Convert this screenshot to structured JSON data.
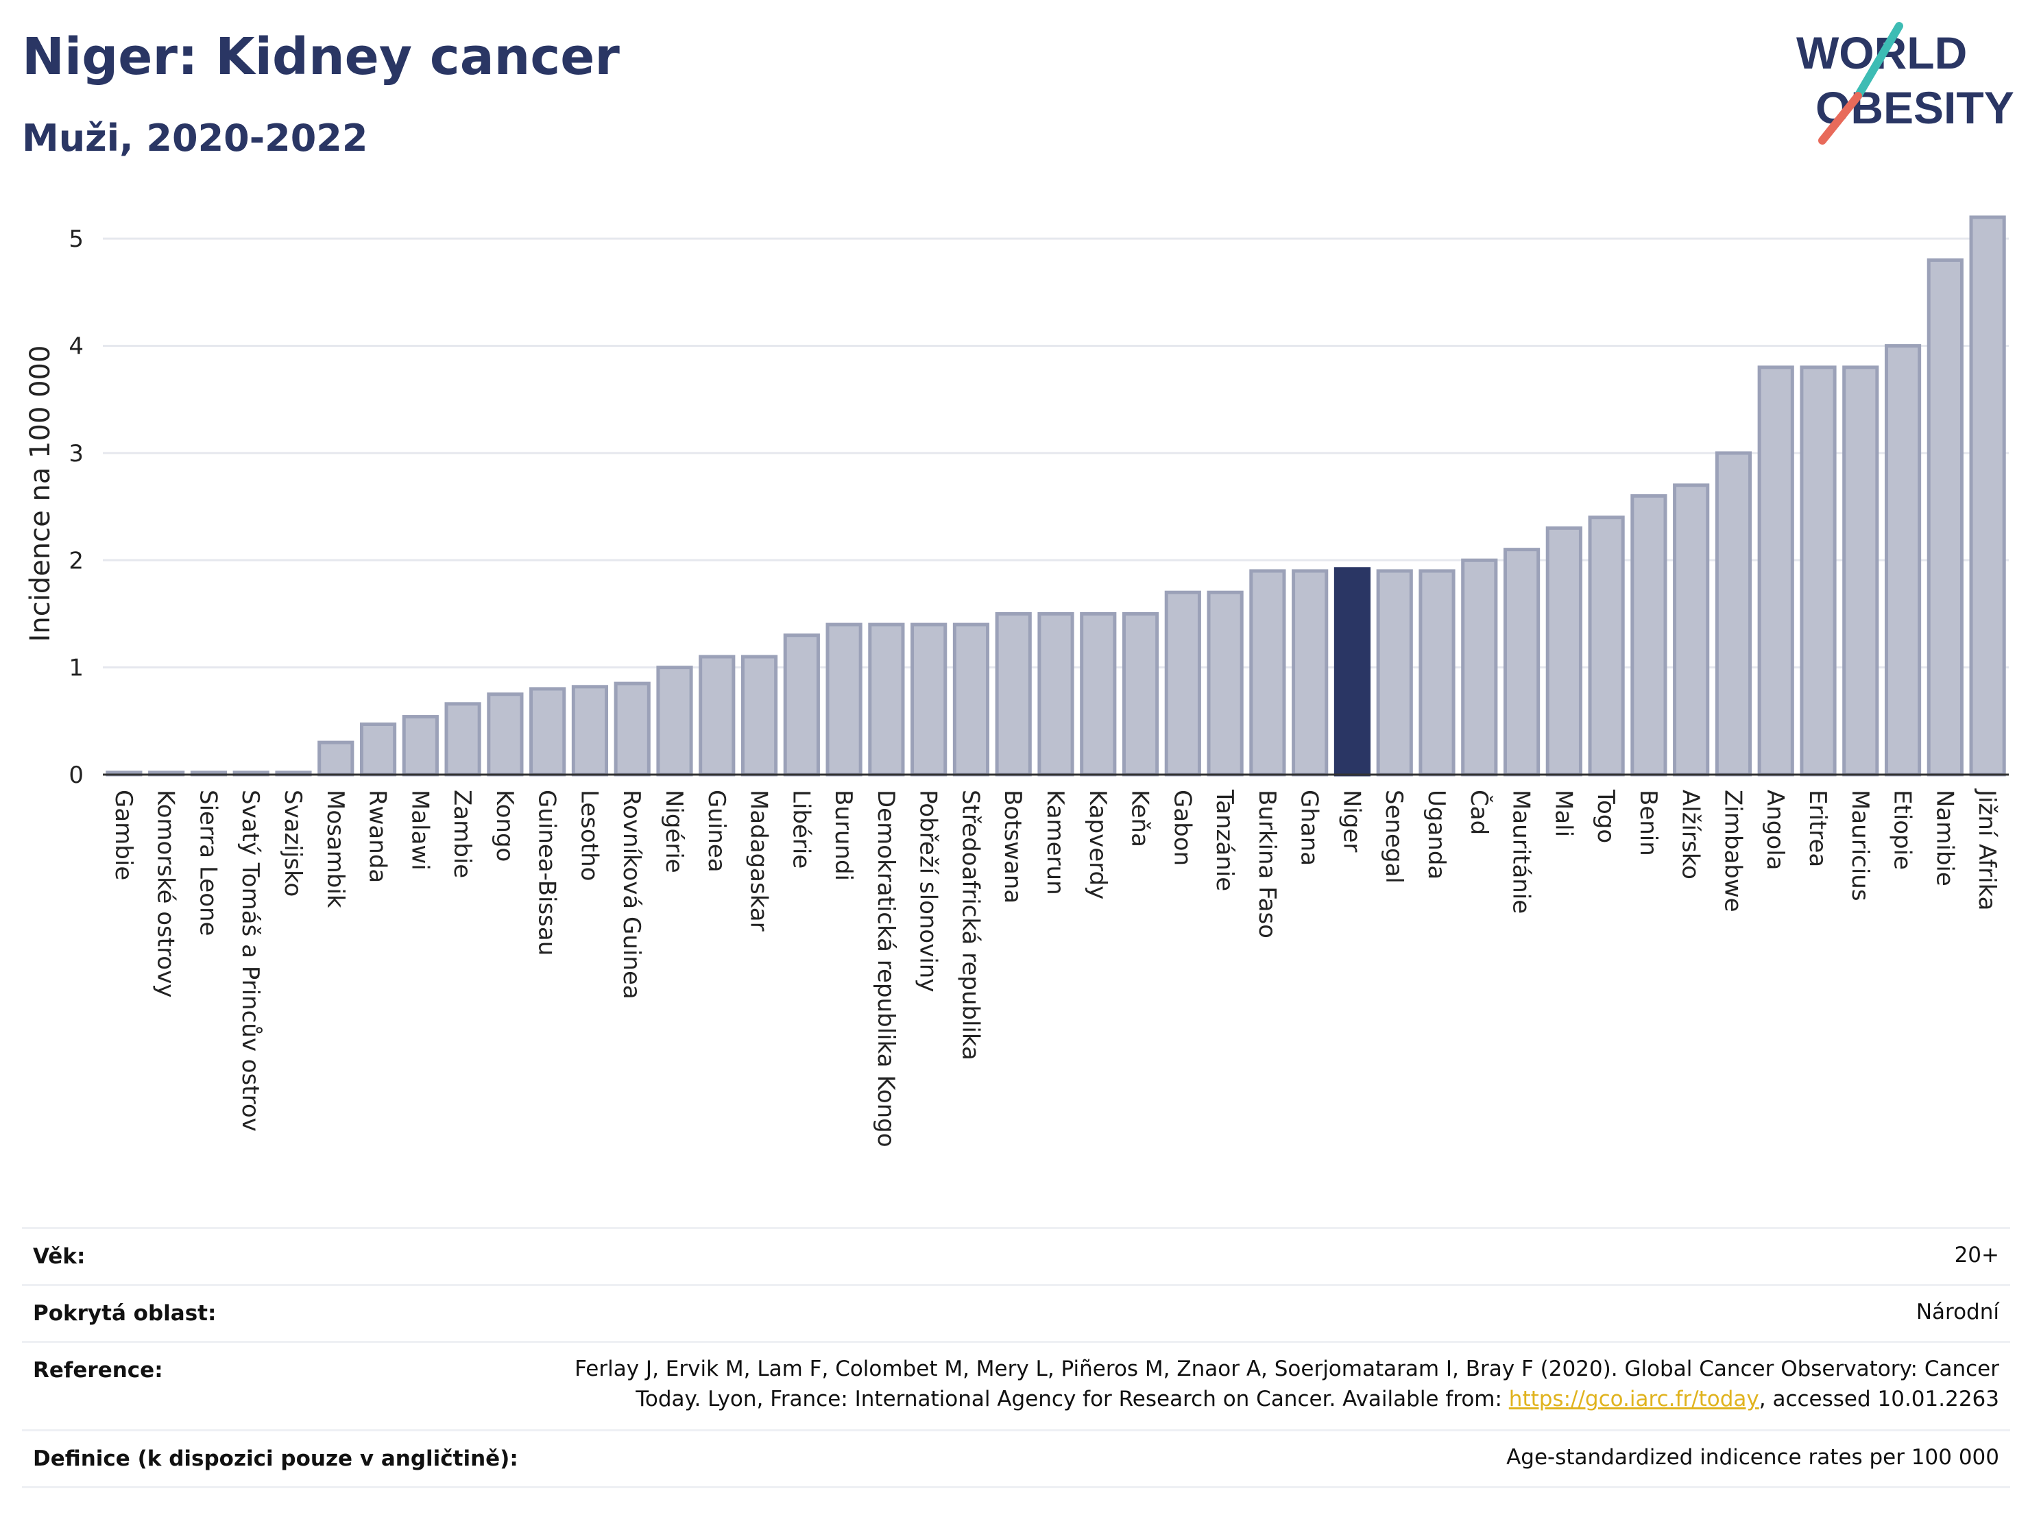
{
  "header": {
    "title": "Niger: Kidney cancer",
    "subtitle": "Muži, 2020-2022"
  },
  "logo": {
    "line1": "WORLD",
    "line2": "OBESITY",
    "colors": {
      "text": "#2a3664",
      "slash_top": "#3dbcb4",
      "slash_bottom": "#e86a5a"
    }
  },
  "colors": {
    "bar_fill": "#bcc0cf",
    "bar_stroke": "#9ba1b8",
    "highlight": "#2a3664",
    "grid": "#e6e8ee"
  },
  "chart_data": {
    "type": "bar",
    "ylabel": "Incidence na 100 000",
    "ylim": [
      0,
      5.5
    ],
    "yticks": [
      0,
      1,
      2,
      3,
      4,
      5
    ],
    "grid": true,
    "highlight": "Niger",
    "categories": [
      "Gambie",
      "Komorské ostrovy",
      "Sierra Leone",
      "Svatý Tomáš a Princův ostrov",
      "Svazijsko",
      "Mosambik",
      "Rwanda",
      "Malawi",
      "Zambie",
      "Kongo",
      "Guinea-Bissau",
      "Lesotho",
      "Rovníková Guinea",
      "Nigérie",
      "Guinea",
      "Madagaskar",
      "Libérie",
      "Burundi",
      "Demokratická republika Kongo",
      "Pobřeží slonoviny",
      "Středoafrická republika",
      "Botswana",
      "Kamerun",
      "Kapverdy",
      "Keňa",
      "Gabon",
      "Tanzánie",
      "Burkina Faso",
      "Ghana",
      "Niger",
      "Senegal",
      "Uganda",
      "Čad",
      "Mauritánie",
      "Mali",
      "Togo",
      "Benin",
      "Alžírsko",
      "Zimbabwe",
      "Angola",
      "Eritrea",
      "Mauricius",
      "Etiopie",
      "Namibie",
      "Jižní Afrika"
    ],
    "values": [
      0.02,
      0.02,
      0.02,
      0.02,
      0.02,
      0.3,
      0.47,
      0.54,
      0.66,
      0.75,
      0.8,
      0.82,
      0.85,
      1.0,
      1.1,
      1.1,
      1.3,
      1.4,
      1.4,
      1.4,
      1.4,
      1.5,
      1.5,
      1.5,
      1.5,
      1.7,
      1.7,
      1.9,
      1.9,
      1.92,
      1.9,
      1.9,
      2.0,
      2.1,
      2.3,
      2.4,
      2.6,
      2.7,
      3.0,
      3.8,
      3.8,
      3.8,
      4.0,
      4.8,
      5.2
    ]
  },
  "meta": [
    {
      "label": "Věk:",
      "value": "20+"
    },
    {
      "label": "Pokrytá oblast:",
      "value": "Národní"
    },
    {
      "label": "Reference:",
      "value_line1": "Ferlay J, Ervik M, Lam F, Colombet M, Mery L, Piñeros M, Znaor A, Soerjomataram I, Bray F (2020). Global Cancer Observatory: Cancer",
      "value_line2_pre": "Today. Lyon, France: International Agency for Research on Cancer. Available from: ",
      "link": "https://gco.iarc.fr/today",
      "value_line2_post": ", accessed 10.01.2263"
    },
    {
      "label": "Definice (k dispozici pouze v angličtině):",
      "value": "Age-standardized indicence rates per 100 000"
    }
  ]
}
